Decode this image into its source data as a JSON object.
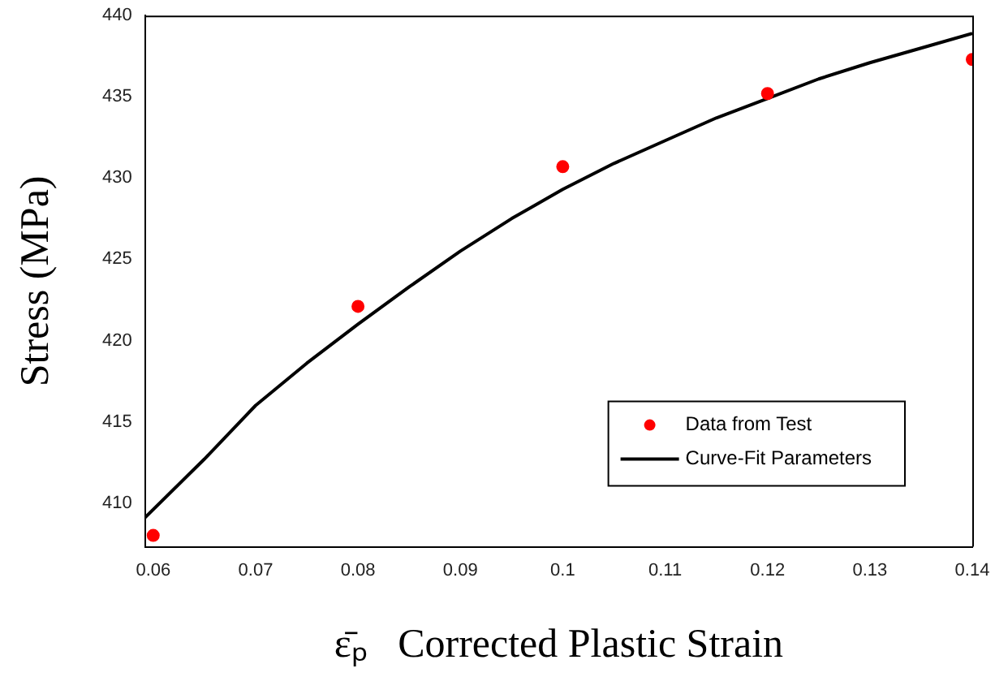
{
  "chart_data": {
    "type": "scatter",
    "xlabel": "ε̄ₚ   Corrected Plastic Strain",
    "ylabel": "Stress (MPa)",
    "xlim": [
      0.0592,
      0.14
    ],
    "xticks": [
      0.06,
      0.07,
      0.08,
      0.09,
      0.1,
      0.11,
      0.12,
      0.13,
      0.14
    ],
    "ylim": [
      407.3,
      440
    ],
    "yticks": [
      410,
      415,
      420,
      425,
      430,
      435,
      440
    ],
    "grid": false,
    "legend": "bottom right",
    "series": [
      {
        "name": "Data from Test",
        "type": "scatter",
        "color": "#ff0000",
        "marker": "circle",
        "x": [
          0.06,
          0.08,
          0.1,
          0.12,
          0.14
        ],
        "values": [
          408.0,
          422.1,
          430.7,
          435.2,
          437.3
        ]
      },
      {
        "name": "Curve-Fit Parameters",
        "type": "line",
        "color": "#000000",
        "marker": "none",
        "line_style": "solid",
        "x": [
          0.0592,
          0.065,
          0.07,
          0.075,
          0.08,
          0.085,
          0.09,
          0.095,
          0.1,
          0.105,
          0.11,
          0.115,
          0.12,
          0.125,
          0.13,
          0.135,
          0.14
        ],
        "values": [
          409.1,
          412.7,
          416.0,
          418.6,
          421.0,
          423.3,
          425.5,
          427.5,
          429.3,
          430.9,
          432.3,
          433.7,
          434.9,
          436.1,
          437.1,
          438.0,
          438.9
        ]
      }
    ]
  }
}
